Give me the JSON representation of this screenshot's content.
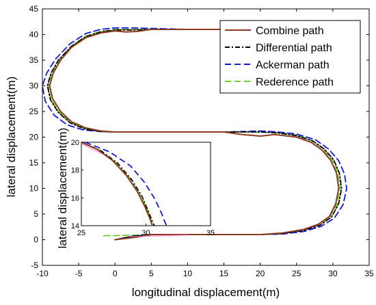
{
  "chart_data": {
    "type": "line",
    "title": "",
    "xlabel": "longitudinal displacement(m)",
    "ylabel": "lateral displacement(m)",
    "xlim": [
      -10,
      35
    ],
    "ylim": [
      -5,
      45
    ],
    "xticks": [
      -10,
      -5,
      0,
      5,
      10,
      15,
      20,
      25,
      30,
      35
    ],
    "yticks": [
      -5,
      0,
      5,
      10,
      15,
      20,
      25,
      30,
      35,
      40,
      45
    ],
    "grid": false,
    "legend_position": "top-right",
    "series": [
      {
        "name": "Combine path",
        "color": "#8B3A1E",
        "style": "solid",
        "x": [
          15,
          10,
          5,
          3,
          1.5,
          0,
          -2,
          -4,
          -6,
          -7.5,
          -8.5,
          -9,
          -8.6,
          -7.5,
          -6,
          -4,
          -2,
          0,
          5,
          10,
          15,
          17.5,
          20,
          22,
          25,
          27,
          28.5,
          29.7,
          30.5,
          30.8,
          30.4,
          29.5,
          28,
          26,
          23,
          20,
          15,
          10,
          5,
          3,
          0
        ],
        "y": [
          41,
          41,
          41,
          40.6,
          40.5,
          40.7,
          40.3,
          39.4,
          37.5,
          35,
          32.5,
          30,
          27.5,
          25,
          23,
          21.8,
          21.2,
          21,
          21,
          21,
          21,
          20.5,
          20.2,
          20.5,
          20,
          19,
          17.5,
          15.5,
          13,
          10,
          7,
          4.5,
          3,
          2,
          1.3,
          1,
          1,
          1,
          1,
          0.5,
          0
        ]
      },
      {
        "name": "Differential path",
        "color": "#000000",
        "style": "dashdot",
        "x": [
          15,
          10,
          5,
          2.5,
          1,
          0,
          -2,
          -4,
          -6,
          -7.8,
          -8.8,
          -9.3,
          -8.9,
          -7.8,
          -6.2,
          -4.2,
          -2,
          0,
          5,
          10,
          15,
          20,
          22.5,
          25,
          27.2,
          28.8,
          30.1,
          30.9,
          31.2,
          30.8,
          29.8,
          28.2,
          26,
          23,
          20,
          15,
          10,
          5,
          2.5,
          0
        ],
        "y": [
          41,
          41,
          41,
          40.9,
          40.9,
          40.9,
          40.5,
          39.6,
          37.7,
          35,
          32.5,
          30,
          27.3,
          24.8,
          22.8,
          21.6,
          21.1,
          21,
          21,
          21,
          21,
          21,
          20.8,
          20.3,
          19.3,
          17.7,
          15.6,
          13,
          10,
          7,
          4.4,
          2.8,
          1.8,
          1.2,
          1,
          1,
          1,
          1,
          0.7,
          0
        ]
      },
      {
        "name": "Ackerman path",
        "color": "#1515D9",
        "style": "dashed",
        "x": [
          15,
          10,
          5,
          2.5,
          0,
          -2,
          -4,
          -6.2,
          -8.2,
          -9.4,
          -10,
          -9.6,
          -8.4,
          -6.6,
          -4.4,
          -2,
          0,
          5,
          10,
          15,
          20,
          22.5,
          25,
          27.6,
          29.4,
          30.8,
          31.6,
          31.9,
          31.4,
          30.2,
          28.4,
          26,
          23,
          20,
          15,
          10,
          5,
          2.5,
          0
        ],
        "y": [
          41,
          41,
          41.2,
          41.3,
          41.3,
          41,
          40.2,
          38.2,
          35.2,
          32.5,
          30,
          27,
          24.3,
          22.4,
          21.4,
          21.1,
          21,
          21,
          21,
          21,
          21.2,
          21,
          20.6,
          19.5,
          17.7,
          15.4,
          12.8,
          10,
          6.8,
          4.2,
          2.6,
          1.6,
          1.1,
          1,
          1,
          1,
          1,
          0.7,
          0
        ]
      },
      {
        "name": "Rederence path",
        "color": "#66D12A",
        "style": "dashed",
        "x": [
          15,
          10,
          5,
          2.5,
          0,
          -2,
          -4,
          -6,
          -7.7,
          -8.7,
          -9.2,
          -8.8,
          -7.7,
          -6.1,
          -4.1,
          -2,
          0,
          5,
          10,
          15,
          20,
          22.5,
          25,
          27,
          28.6,
          29.9,
          30.7,
          31,
          30.6,
          29.6,
          28,
          26,
          23,
          20,
          15,
          10,
          5,
          2.5,
          0,
          -2
        ],
        "y": [
          41,
          41,
          41,
          41,
          41,
          40.6,
          39.7,
          37.8,
          35,
          32.5,
          30,
          27.4,
          24.9,
          22.9,
          21.7,
          21.1,
          21,
          21,
          21,
          21,
          21,
          20.9,
          20.4,
          19.4,
          17.8,
          15.6,
          13,
          10,
          7,
          4.5,
          2.9,
          1.9,
          1.2,
          1,
          1,
          1,
          1,
          0.9,
          0.8,
          0.8
        ]
      }
    ],
    "inset": {
      "xlim": [
        25,
        35
      ],
      "ylim": [
        14,
        20
      ],
      "xticks": [
        25,
        30,
        35
      ],
      "yticks": [
        14,
        16,
        18,
        20
      ],
      "ylabel": "lateral displacement(m)"
    }
  },
  "colors": {
    "pink_highlight": "#FF66CC"
  }
}
